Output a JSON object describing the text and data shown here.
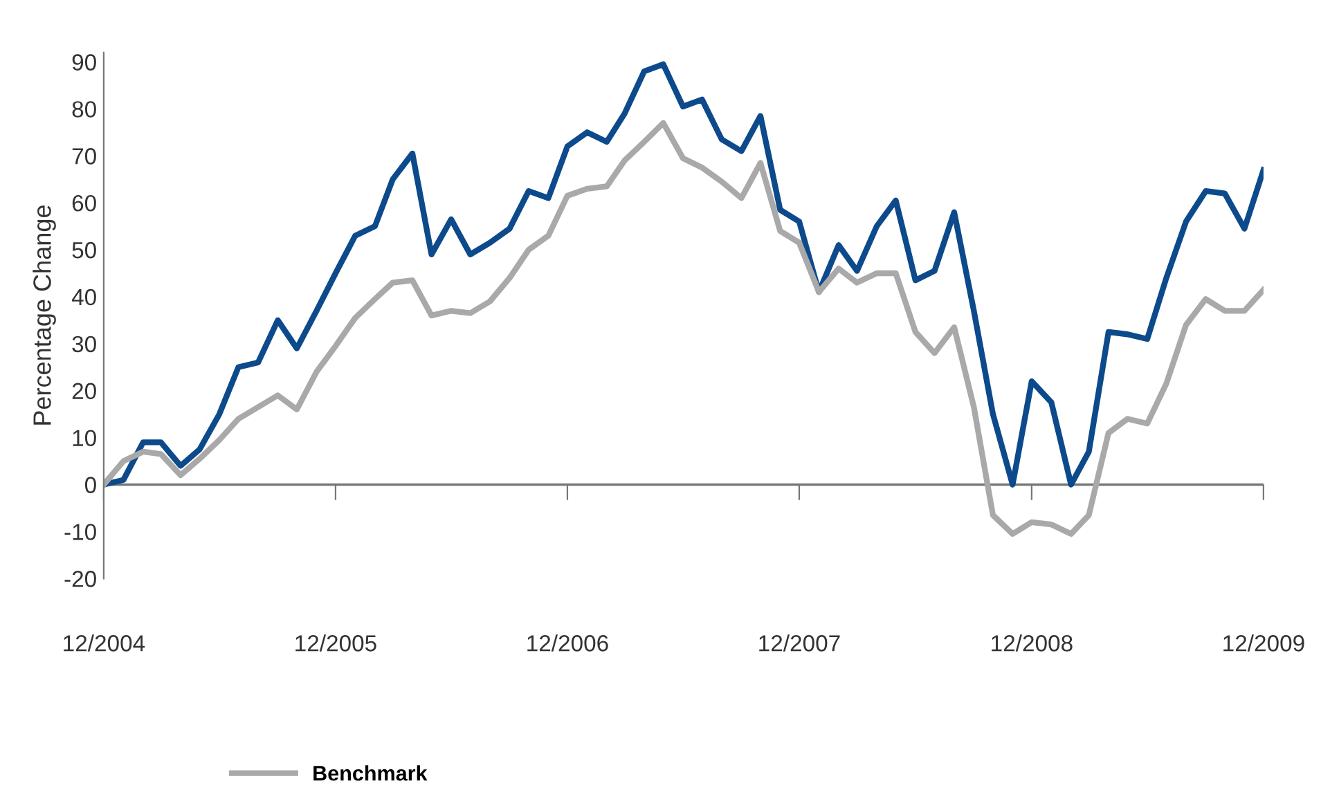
{
  "chart_data": {
    "type": "line",
    "ylabel": "Percentage Change",
    "x": [
      "2004-12",
      "2005-01",
      "2005-02",
      "2005-03",
      "2005-04",
      "2005-05",
      "2005-06",
      "2005-07",
      "2005-08",
      "2005-09",
      "2005-10",
      "2005-11",
      "2005-12",
      "2006-01",
      "2006-02",
      "2006-03",
      "2006-04",
      "2006-05",
      "2006-06",
      "2006-07",
      "2006-08",
      "2006-09",
      "2006-10",
      "2006-11",
      "2006-12",
      "2007-01",
      "2007-02",
      "2007-03",
      "2007-04",
      "2007-05",
      "2007-06",
      "2007-07",
      "2007-08",
      "2007-09",
      "2007-10",
      "2007-11",
      "2007-12",
      "2008-01",
      "2008-02",
      "2008-03",
      "2008-04",
      "2008-05",
      "2008-06",
      "2008-07",
      "2008-08",
      "2008-09",
      "2008-10",
      "2008-11",
      "2008-12",
      "2009-01",
      "2009-02",
      "2009-03",
      "2009-04",
      "2009-05",
      "2009-06",
      "2009-07",
      "2009-08",
      "2009-09",
      "2009-10",
      "2009-11",
      "2009-12"
    ],
    "series": [
      {
        "color": "#0d4a8c",
        "values": [
          0,
          1,
          9,
          9,
          4,
          7.5,
          15,
          25,
          26,
          35,
          29,
          37,
          45,
          53,
          55,
          65,
          70.5,
          49,
          56.5,
          49,
          51.5,
          54.5,
          62.5,
          61,
          72,
          75,
          73,
          79,
          88,
          89.5,
          80.5,
          82,
          73.5,
          71,
          78.5,
          58.5,
          56,
          41,
          51,
          45.5,
          55,
          60.5,
          43.5,
          45.5,
          58,
          37,
          15,
          0,
          22,
          17.5,
          0,
          7,
          32.5,
          32,
          31,
          44,
          56,
          62.5,
          62,
          54.5,
          67
        ]
      },
      {
        "name": "Benchmark",
        "color": "#a9a9a9",
        "values": [
          0,
          5,
          7,
          6.5,
          2,
          5.5,
          9.5,
          14,
          16.5,
          19,
          16,
          24,
          29.5,
          35.5,
          39.5,
          43,
          43.5,
          36,
          37,
          36.5,
          39,
          44,
          50,
          53,
          61.5,
          63,
          63.5,
          69,
          73,
          77,
          69.5,
          67.5,
          64.5,
          61,
          68.5,
          54,
          51.5,
          41,
          46,
          43,
          45,
          45,
          32.5,
          28,
          33.5,
          16.5,
          -6.5,
          -10.5,
          -8,
          -8.5,
          -10.5,
          -6.5,
          11,
          14,
          13,
          21.5,
          34,
          39.5,
          37,
          37,
          41.5
        ]
      }
    ],
    "xlim": [
      "2004-12",
      "2009-12"
    ],
    "xticks": [
      {
        "value": "2004-12",
        "label": "12/2004"
      },
      {
        "value": "2005-12",
        "label": "12/2005"
      },
      {
        "value": "2006-12",
        "label": "12/2006"
      },
      {
        "value": "2007-12",
        "label": "12/2007"
      },
      {
        "value": "2008-12",
        "label": "12/2008"
      },
      {
        "value": "2009-12",
        "label": "12/2009"
      }
    ],
    "ylim": [
      -20,
      92
    ],
    "yticks": [
      -20,
      -10,
      0,
      10,
      20,
      30,
      40,
      50,
      60,
      70,
      80,
      90
    ],
    "ref_lines": [
      {
        "axis": "y",
        "value": 0,
        "color": "#777777"
      }
    ],
    "grid": false,
    "legend": "bottom",
    "marker": "none",
    "line_style": "solid"
  }
}
